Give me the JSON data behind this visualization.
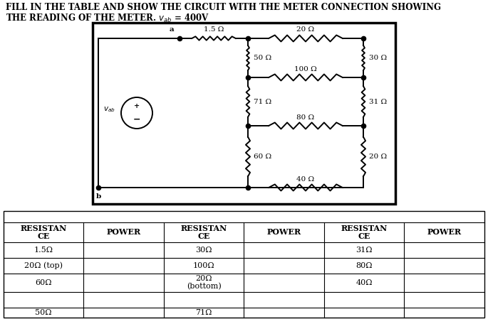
{
  "title_line1": "FILL IN THE TABLE AND SHOW THE CIRCUIT WITH THE METER CONNECTION SHOWING",
  "title_line2": "THE READING OF THE METER.",
  "vab_text": "v",
  "vab_sub": "ab",
  "vab_eq": " = 400",
  "vab_V": "V",
  "bg_color": "#ffffff",
  "font_size_title": 8.5,
  "font_size_circuit": 7.5,
  "font_size_table": 8.0,
  "table_headers": [
    "RESISTAN\nCE",
    "POWER",
    "RESISTAN\nCE",
    "POWER",
    "RESISTAN\nCE",
    "POWER"
  ],
  "col1_data": [
    "1.5Ω",
    "20Ω (top)",
    "60Ω",
    "",
    "50Ω"
  ],
  "col3_data": [
    "30Ω",
    "100Ω",
    "20Ω\n(bottom)",
    "",
    "71Ω"
  ],
  "col5_data": [
    "31Ω",
    "80Ω",
    "40Ω",
    "",
    ""
  ]
}
